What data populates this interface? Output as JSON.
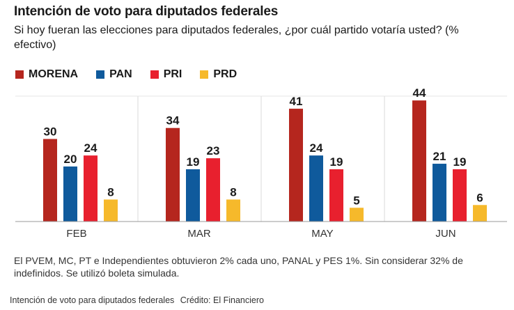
{
  "title": "Intención de voto para diputados federales",
  "subtitle": "Si hoy fueran las elecciones para diputados federales, ¿por cuál partido votaría usted? (% efectivo)",
  "note": "El PVEM, MC, PT e Independientes obtuvieron 2% cada uno, PANAL y PES 1%. Sin considerar 32% de indefinidos. Se utilizó boleta simulada.",
  "caption": "Intención de voto para diputados federales",
  "credit": "Crédito: El Financiero",
  "colors": {
    "MORENA": "#b5261e",
    "PAN": "#0f5a9c",
    "PRI": "#e8202e",
    "PRD": "#f6b92b"
  },
  "chart_data": {
    "type": "bar",
    "categories": [
      "FEB",
      "MAR",
      "MAY",
      "JUN"
    ],
    "series": [
      {
        "name": "MORENA",
        "values": [
          30,
          34,
          41,
          44
        ]
      },
      {
        "name": "PAN",
        "values": [
          20,
          19,
          24,
          21
        ]
      },
      {
        "name": "PRI",
        "values": [
          24,
          23,
          19,
          19
        ]
      },
      {
        "name": "PRD",
        "values": [
          8,
          8,
          5,
          6
        ]
      }
    ],
    "ylim": [
      0,
      50
    ],
    "legend_position": "top-left",
    "data_labels": true,
    "grid": false
  }
}
